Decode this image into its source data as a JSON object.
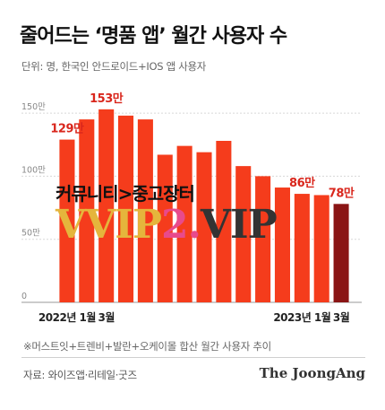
{
  "header": {
    "title": "줄어드는 ‘명품 앱’ 월간 사용자 수",
    "subtitle": "단위: 명, 한국인 안드로이드+IOS 앱 사용자"
  },
  "chart_data": {
    "type": "bar",
    "title": "",
    "xlabel": "",
    "ylabel": "",
    "y_unit": "만",
    "ylim": [
      0,
      160
    ],
    "y_ticks": [
      0,
      50,
      100,
      150
    ],
    "y_tick_labels": [
      "0",
      "50만",
      "100만",
      "150만"
    ],
    "grid": true,
    "categories": [
      "2022-01",
      "2022-02",
      "2022-03",
      "2022-04",
      "2022-05",
      "2022-06",
      "2022-07",
      "2022-08",
      "2022-09",
      "2022-10",
      "2022-11",
      "2022-12",
      "2023-01",
      "2023-02",
      "2023-03"
    ],
    "x_tick_labels": [
      {
        "index": 0,
        "label": "2022년 1월"
      },
      {
        "index": 2,
        "label": "3월"
      },
      {
        "index": 12,
        "label": "2023년 1월"
      },
      {
        "index": 14,
        "label": "3월"
      }
    ],
    "values": [
      129,
      145,
      153,
      148,
      145,
      117,
      124,
      119,
      128,
      108,
      100,
      91,
      86,
      85,
      78
    ],
    "data_labels": [
      {
        "index": 0,
        "label": "129만"
      },
      {
        "index": 2,
        "label": "153만"
      },
      {
        "index": 12,
        "label": "86만"
      },
      {
        "index": 14,
        "label": "78만"
      }
    ],
    "bar_color": "#f53c1c",
    "highlight_index": 14,
    "highlight_color": "#8a1515",
    "label_color": "#d9261c"
  },
  "footnote": "※머스트잇+트렌비+발란+오케이몰 합산 월간 사용자 추이",
  "source": "자료: 와이즈앱·리테일·굿즈",
  "brand": "The JoongAng",
  "watermark": {
    "korean": "커뮤니티>중고장터",
    "part1": "VVIP",
    "part2": "2.",
    "part3": "VIP"
  }
}
